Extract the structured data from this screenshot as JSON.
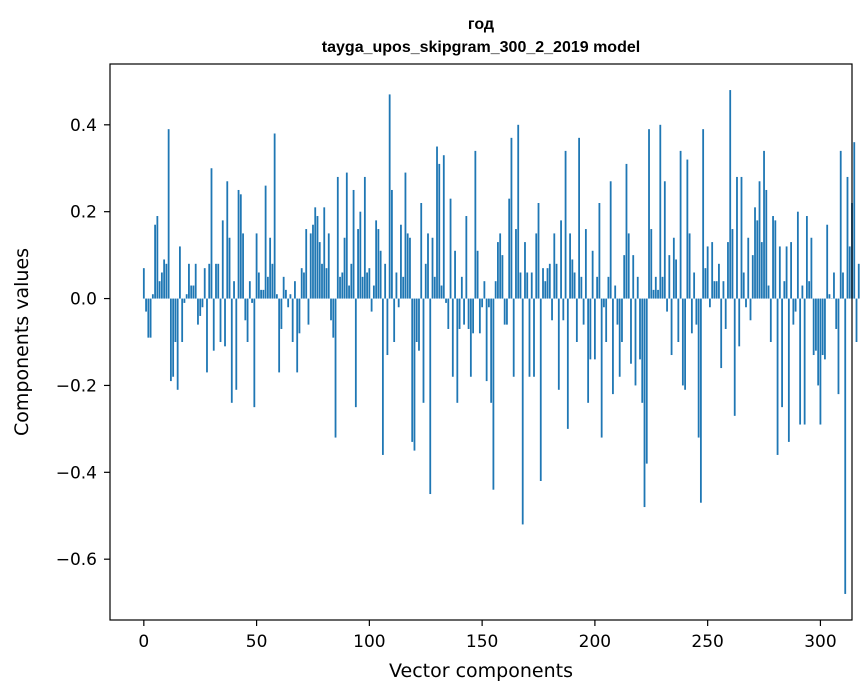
{
  "chart_data": {
    "type": "bar",
    "title": "год",
    "subtitle": "tayga_upos_skipgram_300_2_2019 model",
    "xlabel": "Vector components",
    "ylabel": "Components values",
    "xlim": [
      -15,
      314
    ],
    "ylim": [
      -0.74,
      0.54
    ],
    "x_ticks": [
      0,
      50,
      100,
      150,
      200,
      250,
      300
    ],
    "y_ticks": [
      -0.6,
      -0.4,
      -0.2,
      0.0,
      0.2,
      0.4
    ],
    "y_tick_labels": [
      "−0.6",
      "−0.4",
      "−0.2",
      "0.0",
      "0.2",
      "0.4"
    ],
    "bar_color": "#1f77b4",
    "grid": false,
    "values": [
      0.07,
      -0.03,
      -0.09,
      -0.09,
      0.01,
      0.17,
      0.19,
      0.04,
      0.06,
      0.09,
      0.08,
      0.39,
      -0.19,
      -0.18,
      -0.1,
      -0.21,
      0.12,
      -0.1,
      -0.01,
      0.01,
      0.08,
      0.03,
      0.03,
      0.08,
      -0.06,
      -0.04,
      -0.02,
      0.07,
      -0.17,
      0.08,
      0.3,
      -0.12,
      0.08,
      0.08,
      -0.1,
      0.18,
      -0.11,
      0.27,
      0.14,
      -0.24,
      0.04,
      -0.21,
      0.25,
      0.24,
      0.15,
      -0.05,
      -0.1,
      0.04,
      -0.01,
      -0.25,
      0.15,
      0.06,
      0.02,
      0.02,
      0.26,
      0.05,
      0.14,
      0.08,
      0.38,
      0.01,
      -0.17,
      -0.07,
      0.05,
      0.02,
      -0.02,
      0.01,
      -0.1,
      0.04,
      -0.17,
      -0.08,
      0.07,
      0.06,
      0.16,
      -0.06,
      0.15,
      0.17,
      0.21,
      0.19,
      0.13,
      0.08,
      0.21,
      0.07,
      0.15,
      -0.05,
      -0.09,
      -0.32,
      0.28,
      0.05,
      0.06,
      0.14,
      0.29,
      0.03,
      0.08,
      0.25,
      -0.25,
      0.16,
      0.2,
      0.05,
      0.28,
      0.06,
      0.07,
      -0.03,
      0.03,
      0.18,
      0.16,
      0.11,
      -0.36,
      0.08,
      -0.13,
      0.47,
      0.25,
      -0.1,
      0.06,
      -0.02,
      0.17,
      0.05,
      0.29,
      0.15,
      0.14,
      -0.33,
      -0.35,
      -0.1,
      -0.12,
      0.22,
      -0.24,
      0.08,
      0.15,
      -0.45,
      0.14,
      0.05,
      0.35,
      0.31,
      0.03,
      0.33,
      -0.01,
      -0.07,
      0.23,
      -0.18,
      0.11,
      -0.24,
      -0.07,
      0.05,
      -0.06,
      0.19,
      -0.07,
      -0.18,
      -0.08,
      0.34,
      0.11,
      -0.08,
      -0.02,
      0.04,
      -0.19,
      -0.02,
      -0.24,
      -0.44,
      0.04,
      0.13,
      0.15,
      0.1,
      -0.06,
      -0.06,
      0.23,
      0.37,
      -0.18,
      0.16,
      0.4,
      0.06,
      -0.52,
      0.13,
      0.06,
      -0.18,
      0.06,
      -0.18,
      0.15,
      0.22,
      -0.42,
      0.07,
      0.04,
      0.07,
      0.08,
      -0.05,
      0.15,
      0.08,
      -0.21,
      0.18,
      -0.05,
      0.34,
      -0.3,
      0.15,
      0.09,
      0.06,
      -0.1,
      0.37,
      0.05,
      -0.06,
      0.16,
      -0.24,
      -0.14,
      0.11,
      -0.14,
      0.05,
      0.22,
      -0.32,
      -0.02,
      -0.1,
      0.05,
      0.27,
      -0.22,
      0.03,
      -0.06,
      -0.18,
      -0.1,
      0.1,
      0.31,
      0.15,
      -0.15,
      0.1,
      -0.2,
      0.05,
      -0.14,
      -0.24,
      -0.48,
      -0.38,
      0.39,
      0.16,
      0.02,
      0.05,
      0.02,
      0.4,
      0.05,
      0.27,
      -0.03,
      0.1,
      -0.13,
      0.14,
      0.09,
      -0.1,
      0.34,
      -0.2,
      -0.21,
      0.32,
      0.15,
      -0.08,
      0.06,
      -0.06,
      -0.32,
      -0.47,
      0.39,
      0.07,
      0.12,
      -0.02,
      0.13,
      0.04,
      0.04,
      0.08,
      -0.16,
      0.04,
      -0.07,
      0.13,
      0.48,
      0.16,
      -0.27,
      0.28,
      -0.11,
      0.28,
      0.06,
      -0.02,
      0.14,
      -0.05,
      0.1,
      0.21,
      0.18,
      0.27,
      0.13,
      0.34,
      0.25,
      0.03,
      -0.1,
      0.19,
      0.18,
      -0.36,
      0.12,
      -0.25,
      0.04,
      0.12,
      -0.33,
      0.13,
      -0.06,
      -0.03,
      0.2,
      -0.29,
      0.03,
      -0.29,
      0.19,
      0.04,
      0.14,
      -0.13,
      -0.12,
      -0.2,
      -0.29,
      -0.13,
      -0.14,
      0.17,
      0.01,
      0.0,
      0.06,
      -0.07,
      -0.22,
      0.34,
      0.06,
      -0.68,
      0.28,
      0.12,
      0.22,
      0.36,
      -0.1,
      0.08
    ]
  }
}
